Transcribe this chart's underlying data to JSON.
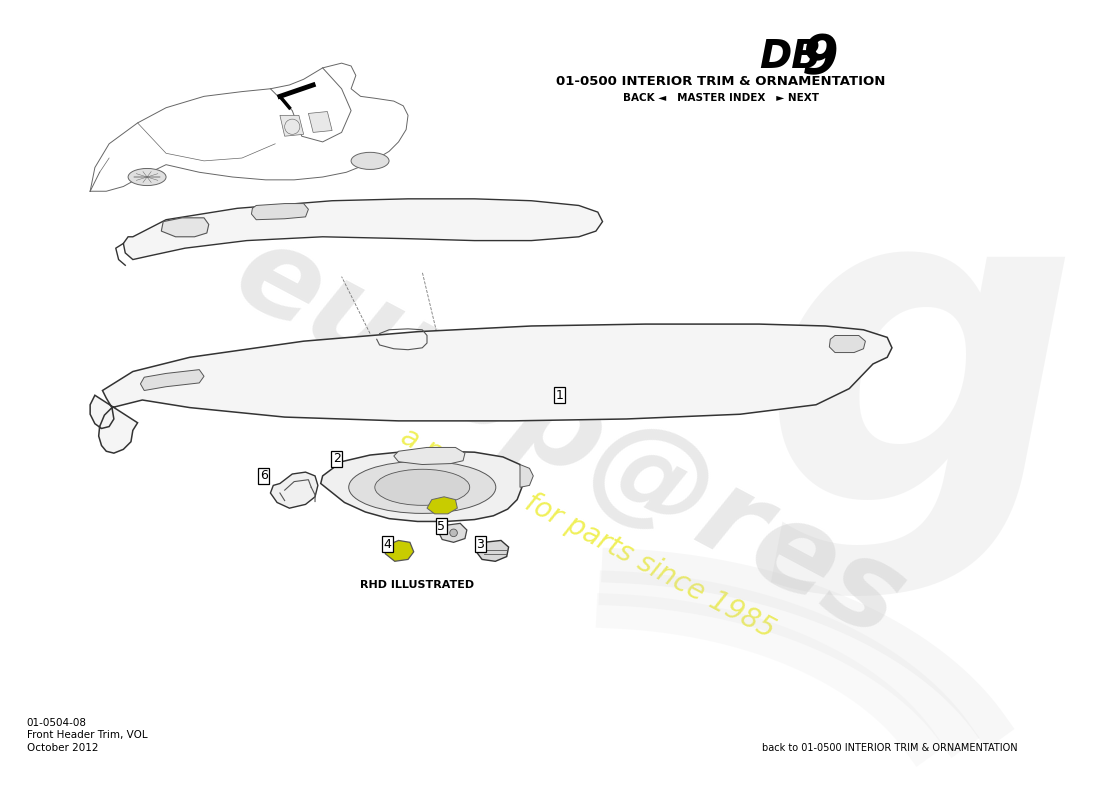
{
  "bg_color": "#ffffff",
  "line_color": "#333333",
  "part_fill": "#f8f8f8",
  "part_fill2": "#eeeeee",
  "title_section": "01-0500 INTERIOR TRIM & ORNAMENTATION",
  "nav_text": "BACK ◄   MASTER INDEX   ► NEXT",
  "part_number": "01-0504-08",
  "part_name": "Front Header Trim, VOL",
  "part_date": "October 2012",
  "footer_right": "back to 01-0500 INTERIOR TRIM & ORNAMENTATION",
  "rhd_text": "RHD ILLUSTRATED",
  "watermark_color": "#e0e0e0",
  "watermark_yellow": "#f0f000",
  "label_fs": 9
}
